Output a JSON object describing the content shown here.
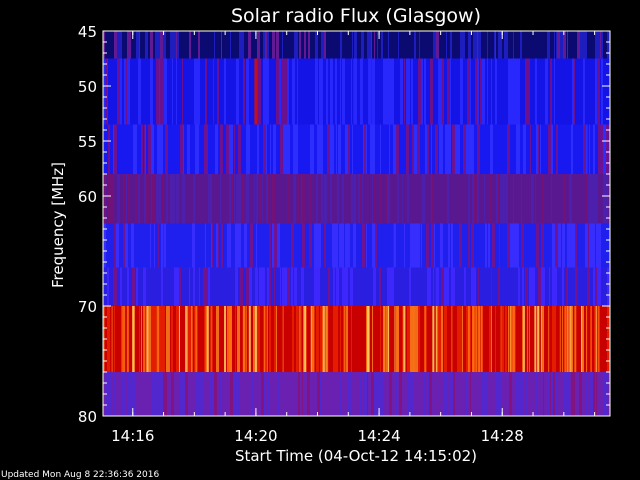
{
  "chart_data": {
    "type": "heatmap",
    "title": "Solar radio Flux (Glasgow)",
    "ylabel": "Frequency [MHz]",
    "xlabel": "Start Time (04-Oct-12 14:15:02)",
    "x_axis": {
      "unit": "time",
      "start": "14:15:02",
      "range": [
        "14:15:02",
        "14:31:30"
      ],
      "tick_labels": [
        "14:16",
        "14:20",
        "14:24",
        "14:28"
      ]
    },
    "y_axis": {
      "unit": "MHz",
      "range": [
        45,
        80
      ],
      "direction": "top-to-bottom",
      "tick_labels": [
        "45",
        "50",
        "55",
        "60",
        "70",
        "80"
      ],
      "tick_values": [
        45,
        50,
        55,
        60,
        70,
        80
      ]
    },
    "grid": false,
    "legend": "none",
    "colormap": [
      "#000060",
      "#0000ff",
      "#7a00b0",
      "#d00000",
      "#ff6000",
      "#ffd040"
    ],
    "bands": [
      {
        "from_mhz": 45.0,
        "to_mhz": 47.5,
        "base": "#0a0a70",
        "alt": "#2020c8",
        "streak": "#8020a0"
      },
      {
        "from_mhz": 47.5,
        "to_mhz": 53.5,
        "base": "#1414e6",
        "alt": "#2a2aff",
        "streak": "#8a1070"
      },
      {
        "from_mhz": 53.5,
        "to_mhz": 58.0,
        "base": "#1818f0",
        "alt": "#3030ff",
        "streak": "#8a1070"
      },
      {
        "from_mhz": 58.0,
        "to_mhz": 62.5,
        "base": "#5a1890",
        "alt": "#4a20b0",
        "streak": "#7a1070"
      },
      {
        "from_mhz": 62.5,
        "to_mhz": 66.5,
        "base": "#2020ee",
        "alt": "#3a30ff",
        "streak": "#8a1070"
      },
      {
        "from_mhz": 66.5,
        "to_mhz": 70.0,
        "base": "#2a1ee0",
        "alt": "#4028ff",
        "streak": "#8a1070"
      },
      {
        "from_mhz": 70.0,
        "to_mhz": 76.0,
        "base": "#c80000",
        "alt": "#e82000",
        "streak": "#ff9020"
      },
      {
        "from_mhz": 76.0,
        "to_mhz": 80.0,
        "base": "#6a20b0",
        "alt": "#5028d0",
        "streak": "#8a1070"
      }
    ],
    "event_marker": {
      "time": "14:19:59",
      "from_mhz": 47.5,
      "to_mhz": 53.5,
      "color": "#c01020"
    }
  },
  "footer": {
    "updated": "Updated Mon Aug  8 22:36:36 2016"
  }
}
